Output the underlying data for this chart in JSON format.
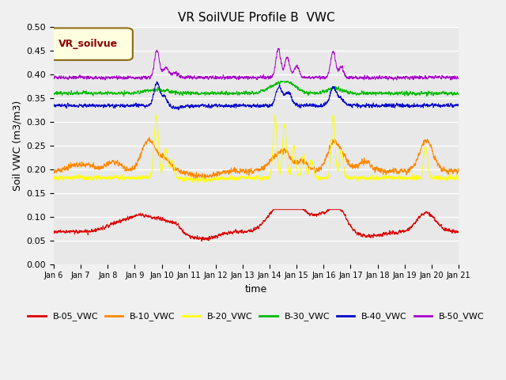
{
  "title": "VR SoilVUE Profile B  VWC",
  "ylabel": "Soil VWC (m3/m3)",
  "xlabel": "time",
  "legend_label": "VR_soilvue",
  "ylim": [
    0.0,
    0.5
  ],
  "yticks": [
    0.0,
    0.05,
    0.1,
    0.15,
    0.2,
    0.25,
    0.3,
    0.35,
    0.4,
    0.45,
    0.5
  ],
  "date_labels": [
    "Jan 6",
    "Jan 7",
    "Jan 8",
    "Jan 9",
    "Jan 10",
    "Jan 11",
    "Jan 12",
    "Jan 13",
    "Jan 14",
    "Jan 15",
    "Jan 16",
    "Jan 17",
    "Jan 18",
    "Jan 19",
    "Jan 20",
    "Jan 21"
  ],
  "colors": {
    "B-05_VWC": "#dd0000",
    "B-10_VWC": "#ff8800",
    "B-20_VWC": "#ffff00",
    "B-30_VWC": "#00bb00",
    "B-40_VWC": "#0000cc",
    "B-50_VWC": "#aa00cc"
  },
  "fig_bg": "#f0f0f0",
  "ax_bg": "#e8e8e8",
  "grid_color": "#ffffff",
  "n_points": 4000
}
